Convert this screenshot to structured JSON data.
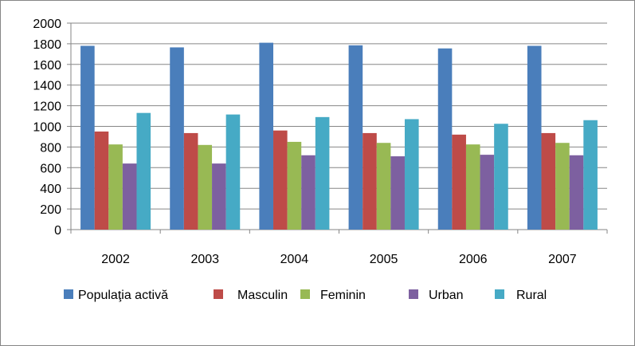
{
  "chart_data": {
    "type": "bar",
    "categories": [
      "2002",
      "2003",
      "2004",
      "2005",
      "2006",
      "2007"
    ],
    "series": [
      {
        "name": "Populaţia activă",
        "color": "#4a7ebb",
        "values": [
          1780,
          1765,
          1810,
          1785,
          1755,
          1780
        ]
      },
      {
        "name": "Masculin",
        "color": "#be4b48",
        "values": [
          950,
          935,
          960,
          935,
          920,
          935
        ]
      },
      {
        "name": "Feminin",
        "color": "#98b954",
        "values": [
          825,
          820,
          850,
          840,
          825,
          840
        ]
      },
      {
        "name": "Urban",
        "color": "#7d60a0",
        "values": [
          640,
          640,
          720,
          710,
          725,
          720
        ]
      },
      {
        "name": "Rural",
        "color": "#46aac5",
        "values": [
          1130,
          1115,
          1090,
          1070,
          1025,
          1060
        ]
      }
    ],
    "ylim": [
      0,
      2000
    ],
    "yticks": [
      "0",
      "200",
      "400",
      "600",
      "800",
      "1000",
      "1200",
      "1400",
      "1600",
      "1800",
      "2000"
    ],
    "grid": true,
    "legend_position": "bottom",
    "title": "",
    "xlabel": "",
    "ylabel": ""
  }
}
